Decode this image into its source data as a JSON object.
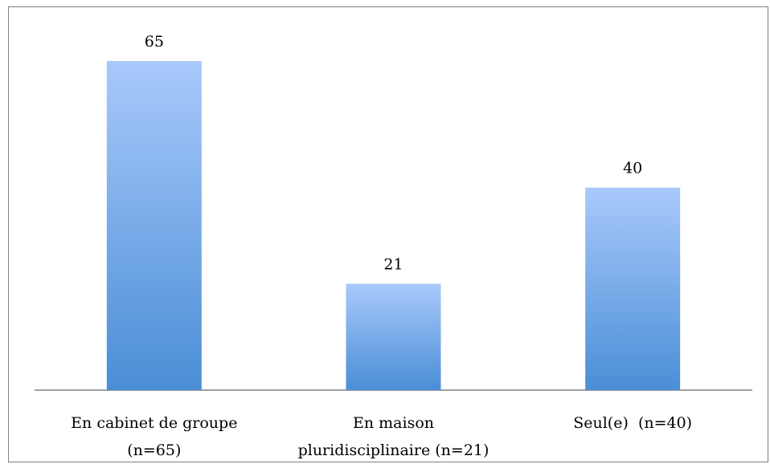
{
  "chart_data": {
    "type": "bar",
    "categories": [
      [
        "En cabinet de groupe",
        "(n=65)"
      ],
      [
        "En maison",
        "pluridisciplinaire (n=21)"
      ],
      [
        "Seul(e)  (n=40)"
      ]
    ],
    "values": [
      65,
      21,
      40
    ],
    "data_labels": [
      "65",
      "21",
      "40"
    ],
    "ylim": [
      0,
      70
    ],
    "grid": false,
    "legend": "none",
    "colors": {
      "bar_top": "#a9c9fb",
      "bar_bottom": "#4a8ed6",
      "axis": "#808080"
    }
  }
}
